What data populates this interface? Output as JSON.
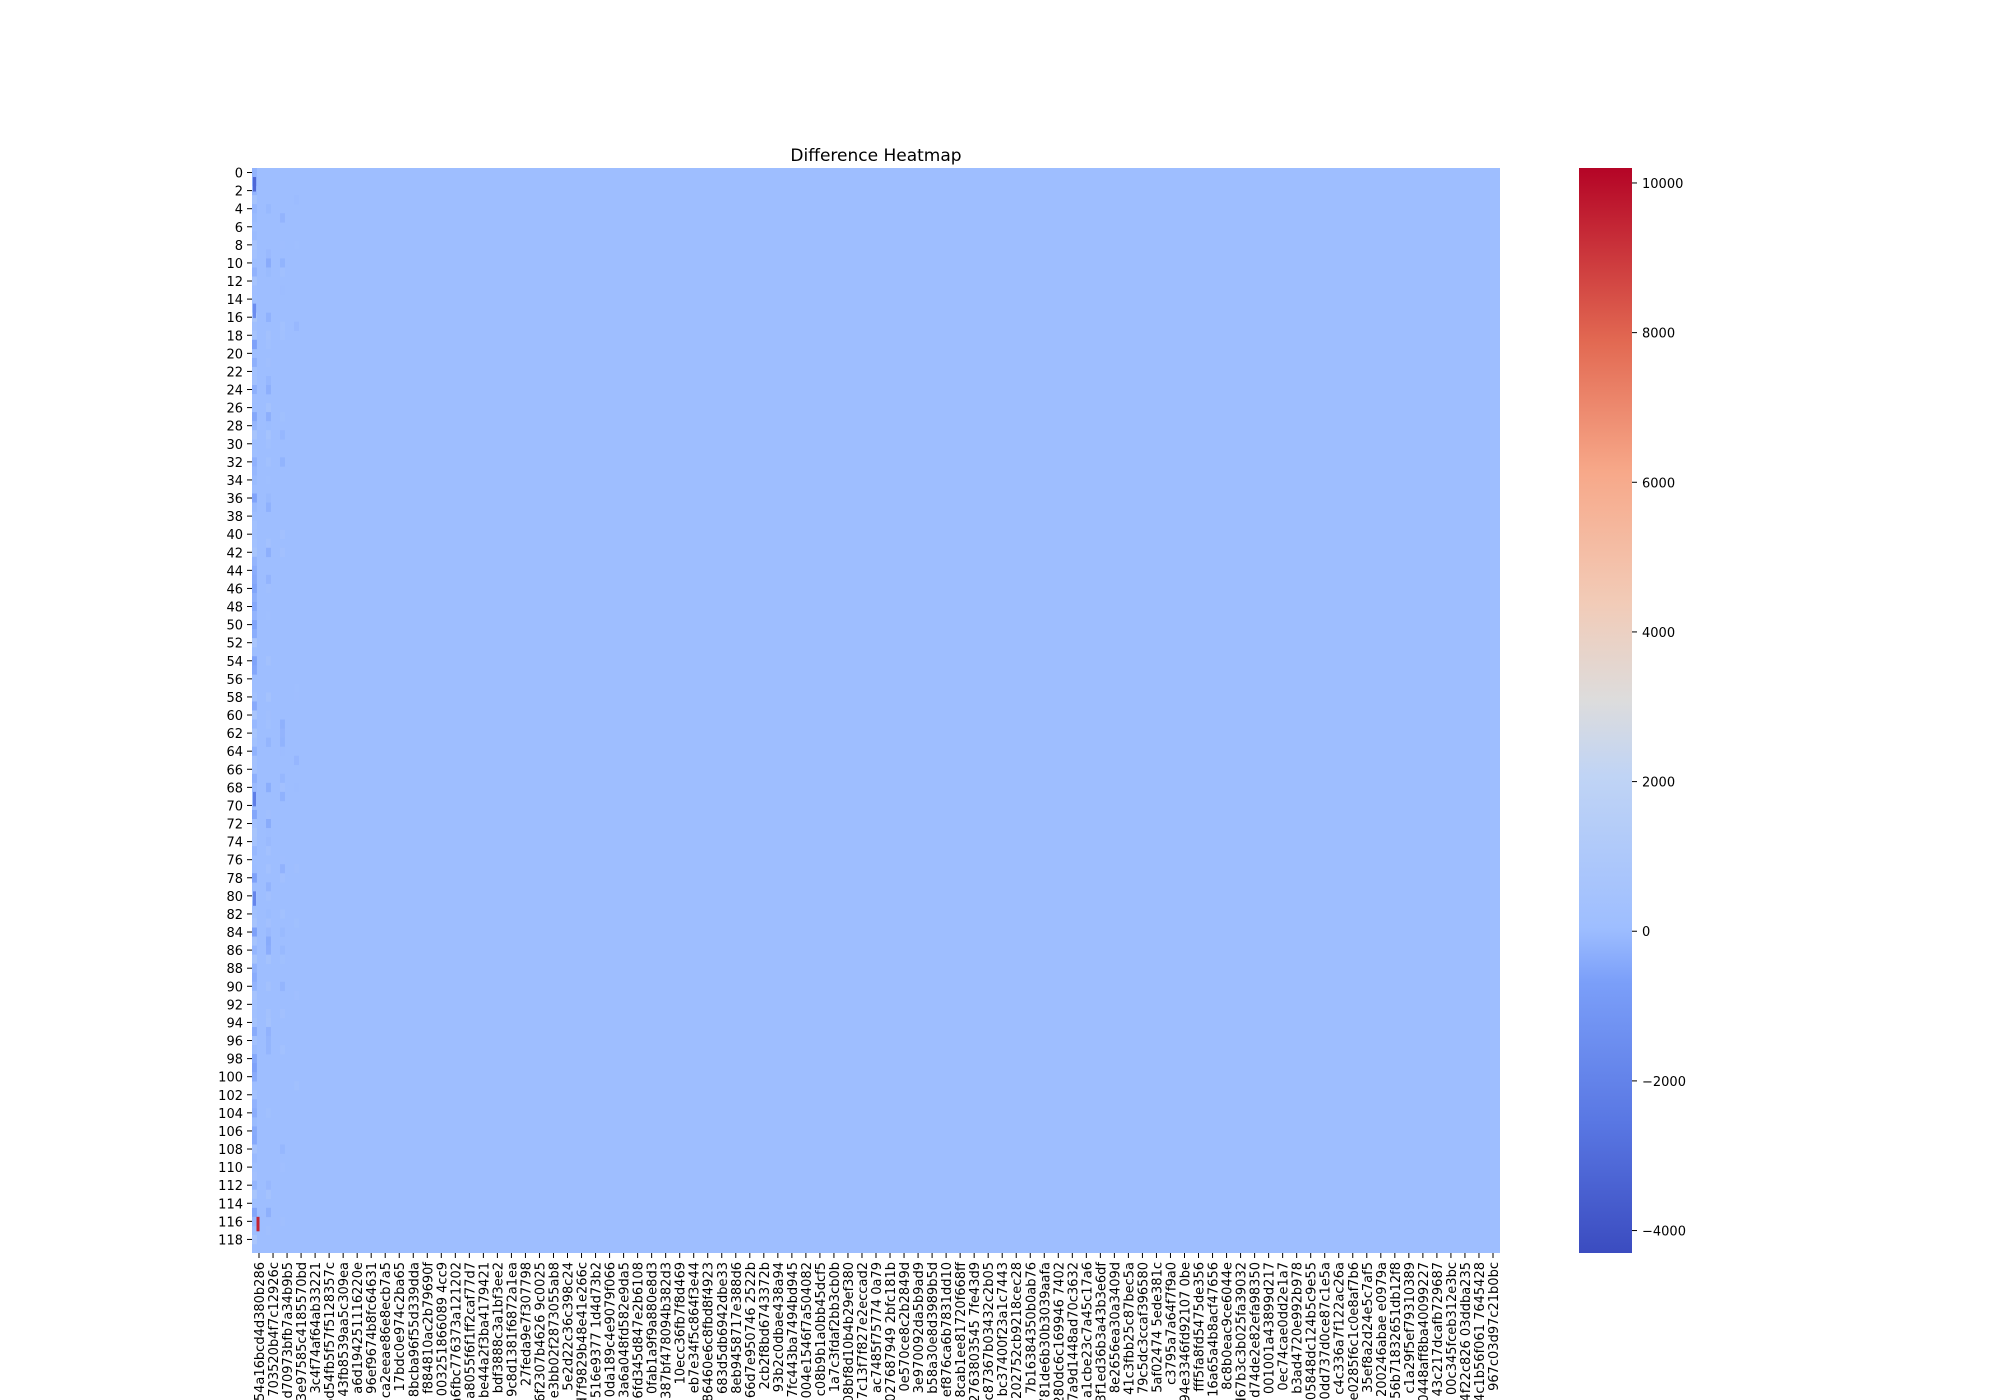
{
  "chart_data": {
    "type": "heatmap",
    "title": "Difference Heatmap",
    "xlabel": "",
    "ylabel": "",
    "colormap": "coolwarm",
    "colors": {
      "background": "#ffffff",
      "low": "#3b4cc0",
      "mid": "#dddddd",
      "high": "#b40426",
      "baseline_cell": "#9ebeff"
    },
    "n_rows": 120,
    "y_tick_labels": [
      "0",
      "2",
      "4",
      "6",
      "8",
      "10",
      "12",
      "14",
      "16",
      "18",
      "20",
      "22",
      "24",
      "26",
      "28",
      "30",
      "32",
      "34",
      "36",
      "38",
      "40",
      "42",
      "44",
      "46",
      "48",
      "50",
      "52",
      "54",
      "56",
      "58",
      "60",
      "62",
      "64",
      "66",
      "68",
      "70",
      "72",
      "74",
      "76",
      "78",
      "80",
      "82",
      "84",
      "86",
      "88",
      "90",
      "92",
      "94",
      "96",
      "98",
      "100",
      "102",
      "104",
      "106",
      "108",
      "110",
      "112",
      "114",
      "116",
      "118"
    ],
    "x_tick_labels": [
      "54a16bcd4d380b286",
      "703520b4f7c12926c",
      "d70973bfb7a34b9b5",
      "3e97585c4185570bd",
      "3c4f74af64ab33221",
      "6d54fb5f57f5128357c",
      "43fb8539aa5c309ea",
      "a6d194251116220e",
      "96ef9674b8fc64631",
      "ca2eeae86e8ecb7a5",
      "17bdc0e974c2ba65",
      "8bcba96f55d339dda",
      "f884810ac2b79690f",
      "003251866089 4cc9",
      "a6fbc776373a121202",
      "a8055f6f1ff2caf77d7",
      "be44a2f3ba4179421",
      "bdf3888c3a1bf3ee2",
      "9c8d1381f6872a1ea",
      "27feda9e7f307798",
      "6f2307b4626 9c0025",
      "e3bb02f2873055ab8",
      "5e2d22c36c398c24",
      "d7f9829b48e41e266c",
      "516e9377 1d4d73b2",
      "0da189c4e9079f066",
      "3a6a048fd582e9da5",
      "6fd345d847e2b6108",
      "0fab1a9f9a880e8d3",
      "387bf478094b382d3",
      "10ecc36fb7f8d469",
      "eb7e34f5c864f3e44",
      "86460e6c8fbd8f4923",
      "683d5db6942dbe33",
      "8eb9458717e388d6",
      "66d7e950746 2522b",
      "2cb2f8bd6743372b",
      "93b2c0dbae438a94",
      "7fc443ba7494bd945",
      "004e1546f7a504082",
      "c08b9b1a0bb45dcf5",
      "1a7c3fdaf2bb3cb0b",
      "08bf8d10b4b29ef380",
      "7c13f7f827e2eccad2",
      "ac7485f75774 0a79",
      "027687949 2bfc181b",
      "0e570ce8c2b2849d",
      "3e970092da5b9ad9",
      "b58a30e8d3989b5d",
      "ef876ca6b7831dd10",
      "8cab1ee81720f668ff",
      "2763803545 7fe43d9",
      "c87367b03432c2b05",
      "bc37400f23a1c7443",
      "202752cb9218cec28",
      "7b16384350b0ab76",
      "3781de6b30b3039aafa",
      "280dc6c169946 7402",
      "7a9d1448ad70c3632",
      "a1cbe23c7a45c17a6",
      "d3f1ed36b3a43b3e6df",
      "8e2656ea30a3409d",
      "41c3fbb25c87bec5a",
      "79c5dc3ccaf396580",
      "5af02474 5ede381c",
      "c3795a7a64f7f9a0",
      "94e3346fd92107 0be",
      "fff5fa8fd5475de356",
      "16a65a4b8acf47656",
      "8c8b0eac9ce6044e",
      "d67b3c3b025fa39032",
      "d74de2e82efa98350",
      "001001a43899d217",
      "0ec74cae0dd2e1a7",
      "b3ad4720e992b978",
      "05848dc124b5c9e55",
      "0dd737d0ce87c1e5a",
      "c4c336a7f122ac26a",
      "be0e0285f6c1c0e8af7b6",
      "35ef8a2d24e5c7af5",
      "200246abae e0979a",
      "56b71832651db12f8",
      "c1a29f5ef79310389",
      "80448aff8ba40099227",
      "43c217dcafb729687",
      "00c345fceb312e3bc",
      "4f22c826 03ddba235",
      "4c1b56f061 7645428",
      "967c03d97c21b0bc"
    ],
    "value_range": [
      -4300,
      10200
    ],
    "colorbar": {
      "ticks": [
        -4000,
        -2000,
        0,
        2000,
        4000,
        6000,
        8000,
        10000
      ],
      "tick_labels": [
        "−4000",
        "−2000",
        "0",
        "2000",
        "4000",
        "6000",
        "8000",
        "10000"
      ],
      "placement": "right"
    },
    "baseline_value": 0,
    "notable_cells": [
      {
        "row": 1,
        "col": 0,
        "value": -3200
      },
      {
        "row": 116,
        "col": 1,
        "value": 9500
      },
      {
        "row": 69,
        "col": 0,
        "value": -2200
      },
      {
        "row": 80,
        "col": 0,
        "value": -1900
      },
      {
        "row": 15,
        "col": 0,
        "value": -1500
      }
    ],
    "note_on_structure": "nearly all cells near 0; faint variation only in the leftmost few columns"
  }
}
